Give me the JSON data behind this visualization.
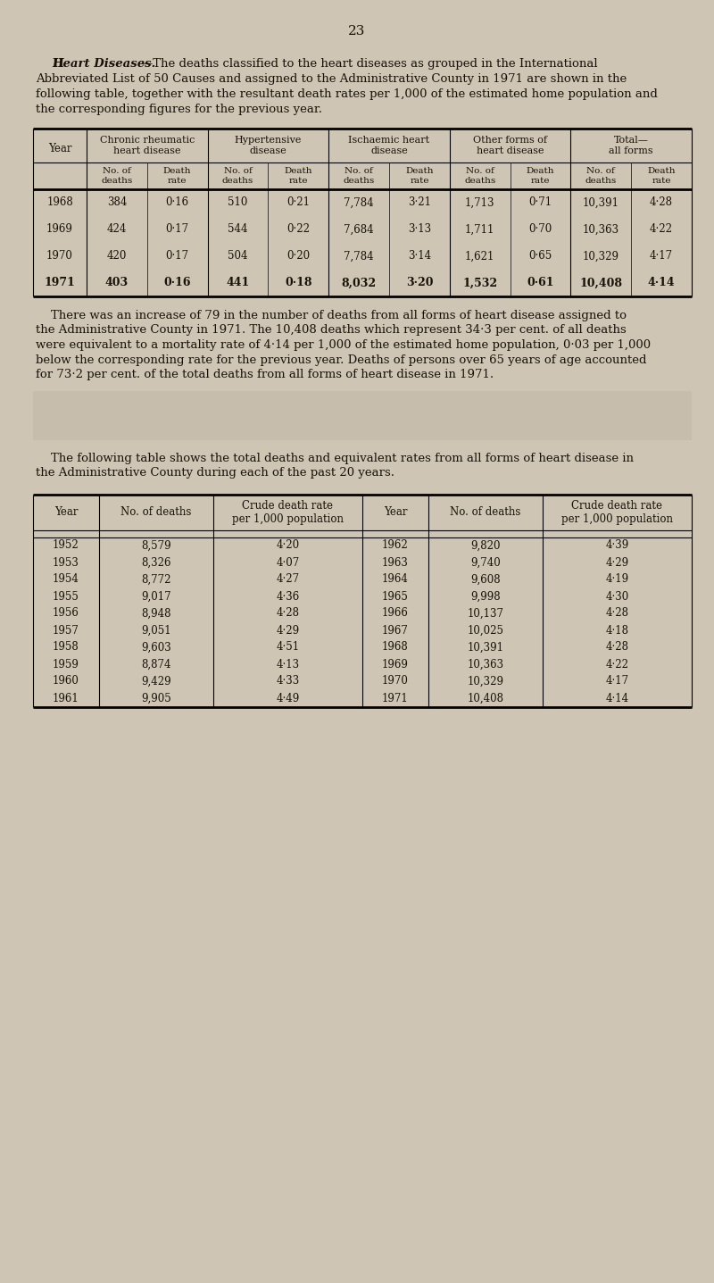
{
  "page_number": "23",
  "bg_color": "#cec5b5",
  "text_color": "#1a1208",
  "table1_col_headers_top": [
    "Chronic rheumatic\nheart disease",
    "Hypertensive\ndisease",
    "Ischaemic heart\ndisease",
    "Other forms of\nheart disease",
    "Total—\nall forms"
  ],
  "table1_col_headers_sub": [
    "No. of\ndeaths",
    "Death\nrate",
    "No. of\ndeaths",
    "Death\nrate",
    "No. of\ndeaths",
    "Death\nrate",
    "No. of\ndeaths",
    "Death\nrate",
    "No. of\ndeaths",
    "Death\nrate"
  ],
  "table1_data": [
    [
      "1968",
      "384",
      "0·16",
      "510",
      "0·21",
      "7,784",
      "3·21",
      "1,713",
      "0·71",
      "10,391",
      "4·28"
    ],
    [
      "1969",
      "424",
      "0·17",
      "544",
      "0·22",
      "7,684",
      "3·13",
      "1,711",
      "0·70",
      "10,363",
      "4·22"
    ],
    [
      "1970",
      "420",
      "0·17",
      "504",
      "0·20",
      "7,784",
      "3·14",
      "1,621",
      "0·65",
      "10,329",
      "4·17"
    ],
    [
      "1971",
      "403",
      "0·16",
      "441",
      "0·18",
      "8,032",
      "3·20",
      "1,532",
      "0·61",
      "10,408",
      "4·14"
    ]
  ],
  "table2_left": [
    [
      "1952",
      "8,579",
      "4·20"
    ],
    [
      "1953",
      "8,326",
      "4·07"
    ],
    [
      "1954",
      "8,772",
      "4·27"
    ],
    [
      "1955",
      "9,017",
      "4·36"
    ],
    [
      "1956",
      "8,948",
      "4·28"
    ],
    [
      "1957",
      "9,051",
      "4·29"
    ],
    [
      "1958",
      "9,603",
      "4·51"
    ],
    [
      "1959",
      "8,874",
      "4·13"
    ],
    [
      "1960",
      "9,429",
      "4·33"
    ],
    [
      "1961",
      "9,905",
      "4·49"
    ]
  ],
  "table2_right": [
    [
      "1962",
      "9,820",
      "4·39"
    ],
    [
      "1963",
      "9,740",
      "4·29"
    ],
    [
      "1964",
      "9,608",
      "4·19"
    ],
    [
      "1965",
      "9,998",
      "4·30"
    ],
    [
      "1966",
      "10,137",
      "4·28"
    ],
    [
      "1967",
      "10,025",
      "4·18"
    ],
    [
      "1968",
      "10,391",
      "4·28"
    ],
    [
      "1969",
      "10,363",
      "4·22"
    ],
    [
      "1970",
      "10,329",
      "4·17"
    ],
    [
      "1971",
      "10,408",
      "4·14"
    ]
  ]
}
